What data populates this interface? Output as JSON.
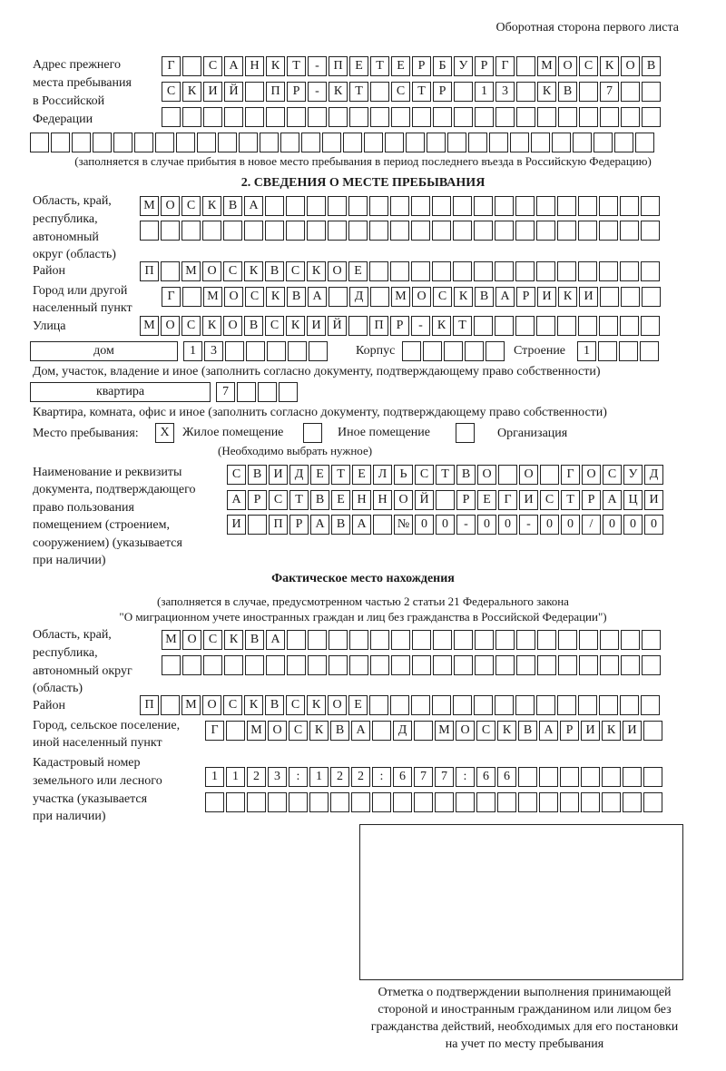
{
  "header": {
    "side_title": "Оборотная сторона первого листа"
  },
  "previous_address": {
    "label_lines": [
      "Адрес прежнего",
      "места пребывания",
      "в Российской",
      "Федерации"
    ],
    "rows": [
      [
        "Г",
        "",
        "С",
        "А",
        "Н",
        "К",
        "Т",
        "-",
        "П",
        "Е",
        "Т",
        "Е",
        "Р",
        "Б",
        "У",
        "Р",
        "Г",
        "",
        "М",
        "О",
        "С",
        "К",
        "О",
        "В"
      ],
      [
        "С",
        "К",
        "И",
        "Й",
        "",
        "П",
        "Р",
        "-",
        "К",
        "Т",
        "",
        "С",
        "Т",
        "Р",
        "",
        "1",
        "3",
        "",
        "К",
        "В",
        "",
        "7",
        "",
        ""
      ],
      [
        "",
        "",
        "",
        "",
        "",
        "",
        "",
        "",
        "",
        "",
        "",
        "",
        "",
        "",
        "",
        "",
        "",
        "",
        "",
        "",
        "",
        "",
        "",
        ""
      ]
    ],
    "full_row": [
      "",
      "",
      "",
      "",
      "",
      "",
      "",
      "",
      "",
      "",
      "",
      "",
      "",
      "",
      "",
      "",
      "",
      "",
      "",
      "",
      "",
      "",
      "",
      "",
      "",
      "",
      "",
      "",
      "",
      ""
    ],
    "note": "(заполняется в случае прибытия в новое место пребывания в период последнего въезда в Российскую Федерацию)"
  },
  "section2": {
    "title": "2. СВЕДЕНИЯ О МЕСТЕ ПРЕБЫВАНИЯ",
    "region": {
      "label_lines": [
        "Область, край,",
        "республика,",
        "автономный",
        "округ (область)"
      ],
      "rows": [
        [
          "М",
          "О",
          "С",
          "К",
          "В",
          "А",
          "",
          "",
          "",
          "",
          "",
          "",
          "",
          "",
          "",
          "",
          "",
          "",
          "",
          "",
          "",
          "",
          "",
          "",
          ""
        ],
        [
          "",
          "",
          "",
          "",
          "",
          "",
          "",
          "",
          "",
          "",
          "",
          "",
          "",
          "",
          "",
          "",
          "",
          "",
          "",
          "",
          "",
          "",
          "",
          "",
          ""
        ]
      ]
    },
    "district": {
      "label": "Район",
      "cells": [
        "П",
        "",
        "М",
        "О",
        "С",
        "К",
        "В",
        "С",
        "К",
        "О",
        "Е",
        "",
        "",
        "",
        "",
        "",
        "",
        "",
        "",
        "",
        "",
        "",
        "",
        "",
        ""
      ]
    },
    "city": {
      "label_lines": [
        "Город или другой",
        "населенный пункт"
      ],
      "cells": [
        "Г",
        "",
        "М",
        "О",
        "С",
        "К",
        "В",
        "А",
        "",
        "Д",
        "",
        "М",
        "О",
        "С",
        "К",
        "В",
        "А",
        "Р",
        "И",
        "К",
        "И",
        "",
        "",
        ""
      ]
    },
    "street": {
      "label": "Улица",
      "cells": [
        "М",
        "О",
        "С",
        "К",
        "О",
        "В",
        "С",
        "К",
        "И",
        "Й",
        "",
        "П",
        "Р",
        "-",
        "К",
        "Т",
        "",
        "",
        "",
        "",
        "",
        "",
        "",
        "",
        ""
      ]
    },
    "house": {
      "type": "дом",
      "cells": [
        "1",
        "3",
        "",
        "",
        "",
        "",
        ""
      ],
      "korpus_label": "Корпус",
      "korpus_cells": [
        "",
        "",
        "",
        "",
        ""
      ],
      "stroenie_label": "Строение",
      "stroenie_cells": [
        "1",
        "",
        "",
        ""
      ],
      "note": "Дом, участок, владение и иное (заполнить согласно документу, подтверждающему право собственности)"
    },
    "apartment": {
      "type": "квартира",
      "cells": [
        "7",
        "",
        "",
        ""
      ],
      "note": "Квартира, комната, офис и иное (заполнить согласно документу, подтверждающему право собственности)"
    },
    "place_of_stay": {
      "label": "Место пребывания:",
      "options": [
        {
          "label": "Жилое помещение",
          "mark": "X"
        },
        {
          "label": "Иное помещение",
          "mark": ""
        },
        {
          "label": "Организация",
          "mark": ""
        }
      ],
      "hint": "(Необходимо выбрать нужное)"
    },
    "document": {
      "label_lines": [
        "Наименование и реквизиты",
        "документа, подтверждающего",
        "право пользования",
        "помещением (строением,",
        "сооружением) (указывается",
        "при наличии)"
      ],
      "rows": [
        [
          "С",
          "В",
          "И",
          "Д",
          "Е",
          "Т",
          "Е",
          "Л",
          "Ь",
          "С",
          "Т",
          "В",
          "О",
          "",
          "О",
          "",
          "Г",
          "О",
          "С",
          "У",
          "Д"
        ],
        [
          "А",
          "Р",
          "С",
          "Т",
          "В",
          "Е",
          "Н",
          "Н",
          "О",
          "Й",
          "",
          "Р",
          "Е",
          "Г",
          "И",
          "С",
          "Т",
          "Р",
          "А",
          "Ц",
          "И"
        ],
        [
          "И",
          "",
          "П",
          "Р",
          "А",
          "В",
          "А",
          "",
          "№",
          "0",
          "0",
          "-",
          "0",
          "0",
          "-",
          "0",
          "0",
          "/",
          "0",
          "0",
          "0"
        ]
      ]
    }
  },
  "actual": {
    "title": "Фактическое место нахождения",
    "note_lines": [
      "(заполняется в случае, предусмотренном частью 2 статьи 21 Федерального закона",
      "\"О миграционном учете иностранных граждан и лиц без гражданства в Российской Федерации\")"
    ],
    "region": {
      "label_lines": [
        "Область, край,",
        "республика,",
        "автономный округ",
        "(область)"
      ],
      "rows": [
        [
          "М",
          "О",
          "С",
          "К",
          "В",
          "А",
          "",
          "",
          "",
          "",
          "",
          "",
          "",
          "",
          "",
          "",
          "",
          "",
          "",
          "",
          "",
          "",
          "",
          ""
        ],
        [
          "",
          "",
          "",
          "",
          "",
          "",
          "",
          "",
          "",
          "",
          "",
          "",
          "",
          "",
          "",
          "",
          "",
          "",
          "",
          "",
          "",
          "",
          "",
          ""
        ]
      ]
    },
    "district": {
      "label": "Район",
      "cells": [
        "П",
        "",
        "М",
        "О",
        "С",
        "К",
        "В",
        "С",
        "К",
        "О",
        "Е",
        "",
        "",
        "",
        "",
        "",
        "",
        "",
        "",
        "",
        "",
        "",
        "",
        "",
        ""
      ]
    },
    "city": {
      "label_lines": [
        "Город, сельское поселение,",
        "иной населенный пункт"
      ],
      "cells": [
        "Г",
        "",
        "М",
        "О",
        "С",
        "К",
        "В",
        "А",
        "",
        "Д",
        "",
        "М",
        "О",
        "С",
        "К",
        "В",
        "А",
        "Р",
        "И",
        "К",
        "И",
        ""
      ]
    },
    "cadastre": {
      "label_lines": [
        "Кадастровый номер",
        "земельного или лесного",
        "участка (указывается",
        "при наличии)"
      ],
      "rows": [
        [
          "1",
          "1",
          "2",
          "3",
          ":",
          "1",
          "2",
          "2",
          ":",
          "6",
          "7",
          "7",
          ":",
          "6",
          "6",
          "",
          "",
          "",
          "",
          "",
          "",
          ""
        ],
        [
          "",
          "",
          "",
          "",
          "",
          "",
          "",
          "",
          "",
          "",
          "",
          "",
          "",
          "",
          "",
          "",
          "",
          "",
          "",
          "",
          "",
          ""
        ]
      ]
    }
  },
  "confirmation": {
    "caption_lines": [
      "Отметка о подтверждении выполнения принимающей",
      "стороной и иностранным гражданином или лицом без",
      "гражданства действий, необходимых для его постановки",
      "на учет по месту пребывания"
    ]
  }
}
